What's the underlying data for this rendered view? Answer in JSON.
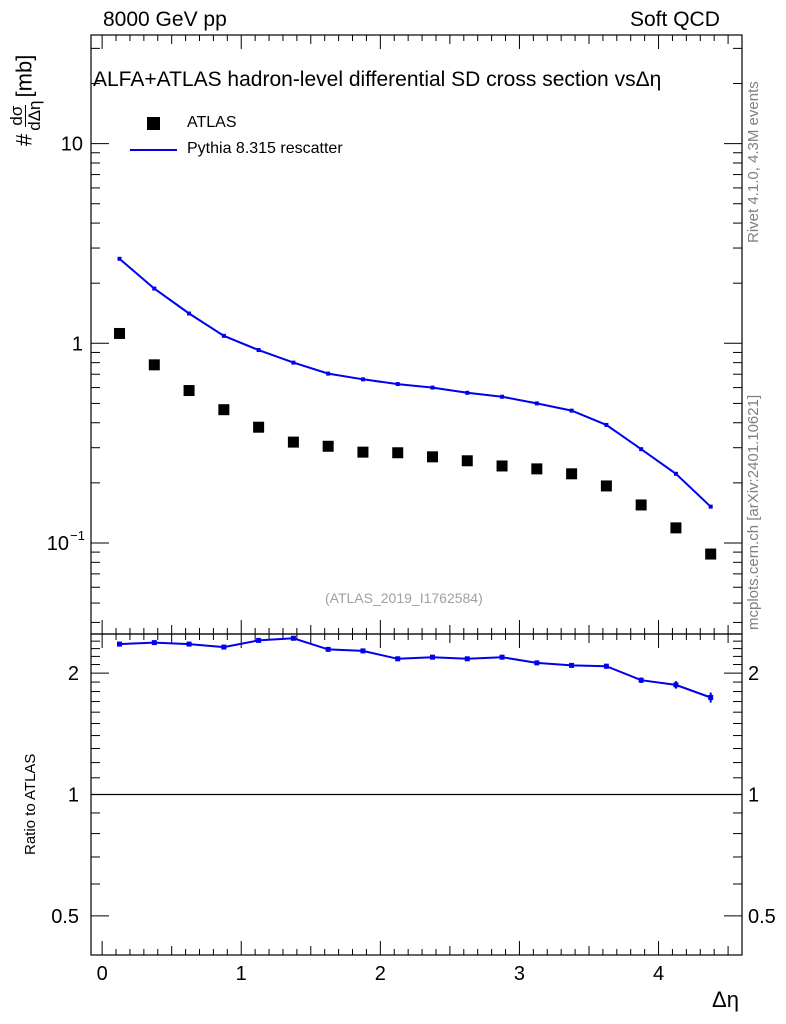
{
  "header": {
    "left": "8000 GeV pp",
    "right": "Soft QCD"
  },
  "side_labels": {
    "rivet": "Rivet 4.1.0,  4.3M events",
    "source": "mcplots.cern.ch [arXiv:2401.10621]"
  },
  "colors": {
    "data": "#000000",
    "mc": "#0000ee",
    "watermark": "#a0a0a0"
  },
  "chart_data": [
    {
      "type": "scatter",
      "title": "ALFA+ATLAS hadron-level differential SD cross section vsΔη",
      "ylabel": "#dσ/dΔη [mb]",
      "ylabel_parts": {
        "prefix": "#",
        "num": "dσ",
        "den": "dΔη",
        "unit": "[mb]"
      },
      "xlabel": "",
      "yscale": "log",
      "ylim": [
        0.035,
        35
      ],
      "xlim": [
        -0.08,
        4.6
      ],
      "yticks": [
        {
          "v": 0.1,
          "label": "10",
          "sup": "−1"
        },
        {
          "v": 1,
          "label": "1",
          "sup": ""
        },
        {
          "v": 10,
          "label": "10",
          "sup": ""
        }
      ],
      "legend": [
        "ATLAS",
        "Pythia 8.315 rescatter"
      ],
      "legend_position": "top-left",
      "watermark": "(ATLAS_2019_I1762584)",
      "x": [
        0.125,
        0.375,
        0.625,
        0.875,
        1.125,
        1.375,
        1.625,
        1.875,
        2.125,
        2.375,
        2.625,
        2.875,
        3.125,
        3.375,
        3.625,
        3.875,
        4.125,
        4.375
      ],
      "series": [
        {
          "name": "ATLAS",
          "style": "markers",
          "values": [
            1.12,
            0.78,
            0.58,
            0.465,
            0.38,
            0.32,
            0.305,
            0.285,
            0.283,
            0.27,
            0.258,
            0.243,
            0.235,
            0.222,
            0.193,
            0.155,
            0.119,
            0.088
          ]
        },
        {
          "name": "Pythia 8.315 rescatter",
          "style": "line",
          "values": [
            2.65,
            1.88,
            1.41,
            1.09,
            0.925,
            0.8,
            0.705,
            0.66,
            0.625,
            0.6,
            0.565,
            0.54,
            0.5,
            0.46,
            0.39,
            0.295,
            0.222,
            0.152
          ]
        }
      ]
    },
    {
      "type": "line",
      "ylabel": "Ratio to ATLAS",
      "xlabel": "Δη",
      "yscale": "log",
      "ylim": [
        0.4,
        2.5
      ],
      "xlim": [
        -0.08,
        4.6
      ],
      "yticks": [
        {
          "v": 0.5,
          "label": "0.5"
        },
        {
          "v": 1,
          "label": "1"
        },
        {
          "v": 2,
          "label": "2"
        }
      ],
      "xticks": [
        {
          "v": 0,
          "label": "0"
        },
        {
          "v": 1,
          "label": "1"
        },
        {
          "v": 2,
          "label": "2"
        },
        {
          "v": 3,
          "label": "3"
        },
        {
          "v": 4,
          "label": "4"
        }
      ],
      "reference": 1,
      "x": [
        0.125,
        0.375,
        0.625,
        0.875,
        1.125,
        1.375,
        1.625,
        1.875,
        2.125,
        2.375,
        2.625,
        2.875,
        3.125,
        3.375,
        3.625,
        3.875,
        4.125,
        4.375
      ],
      "series": [
        {
          "name": "Pythia 8.315 rescatter / ATLAS",
          "values": [
            2.36,
            2.38,
            2.36,
            2.32,
            2.41,
            2.44,
            2.29,
            2.27,
            2.17,
            2.19,
            2.17,
            2.19,
            2.12,
            2.09,
            2.08,
            1.92,
            1.87,
            1.74
          ],
          "errors": [
            0.02,
            0.02,
            0.02,
            0.02,
            0.02,
            0.02,
            0.02,
            0.02,
            0.02,
            0.02,
            0.02,
            0.02,
            0.02,
            0.02,
            0.03,
            0.03,
            0.04,
            0.05
          ]
        }
      ]
    }
  ]
}
